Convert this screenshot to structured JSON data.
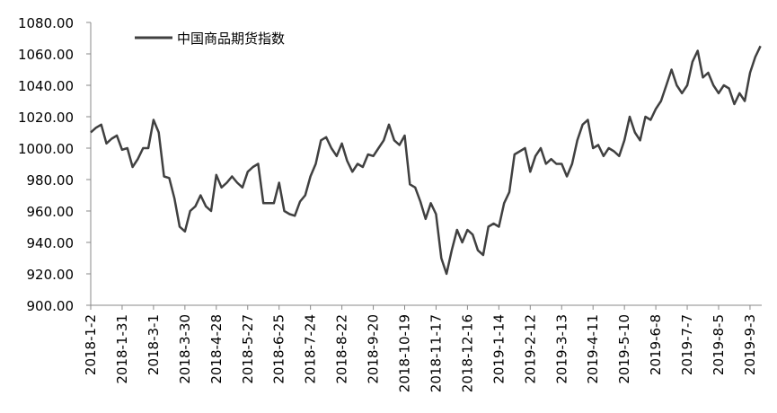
{
  "chart_data": {
    "type": "line",
    "categories": [
      "2018-1-2",
      null,
      null,
      null,
      null,
      null,
      "2018-1-31",
      null,
      null,
      null,
      null,
      null,
      "2018-3-1",
      null,
      null,
      null,
      null,
      null,
      "2018-3-30",
      null,
      null,
      null,
      null,
      null,
      "2018-4-28",
      null,
      null,
      null,
      null,
      null,
      "2018-5-27",
      null,
      null,
      null,
      null,
      null,
      "2018-6-25",
      null,
      null,
      null,
      null,
      null,
      "2018-7-24",
      null,
      null,
      null,
      null,
      null,
      "2018-8-22",
      null,
      null,
      null,
      null,
      null,
      "2018-9-20",
      null,
      null,
      null,
      null,
      null,
      "2018-10-19",
      null,
      null,
      null,
      null,
      null,
      "2018-11-17",
      null,
      null,
      null,
      null,
      null,
      "2018-12-16",
      null,
      null,
      null,
      null,
      null,
      "2019-1-14",
      null,
      null,
      null,
      null,
      null,
      "2019-2-12",
      null,
      null,
      null,
      null,
      null,
      "2019-3-13",
      null,
      null,
      null,
      null,
      null,
      "2019-4-11",
      null,
      null,
      null,
      null,
      null,
      "2019-5-10",
      null,
      null,
      null,
      null,
      null,
      "2019-6-8",
      null,
      null,
      null,
      null,
      null,
      "2019-7-7",
      null,
      null,
      null,
      null,
      null,
      "2019-8-5",
      null,
      null,
      null,
      null,
      null,
      "2019-9-3",
      null,
      null
    ],
    "series": [
      {
        "name": "中国商品期货指数",
        "color": "#404040",
        "values": [
          1010,
          1013,
          1015,
          1003,
          1006,
          1008,
          999,
          1000,
          988,
          993,
          1000,
          1000,
          1018,
          1010,
          982,
          981,
          968,
          950,
          947,
          960,
          963,
          970,
          963,
          960,
          983,
          975,
          978,
          982,
          978,
          975,
          985,
          988,
          990,
          965,
          965,
          965,
          978,
          960,
          958,
          957,
          966,
          970,
          982,
          990,
          1005,
          1007,
          1000,
          995,
          1003,
          992,
          985,
          990,
          988,
          996,
          995,
          1000,
          1005,
          1015,
          1005,
          1002,
          1008,
          977,
          975,
          966,
          955,
          965,
          958,
          930,
          920,
          935,
          948,
          940,
          948,
          945,
          935,
          932,
          950,
          952,
          950,
          965,
          972,
          996,
          998,
          1000,
          985,
          995,
          1000,
          990,
          993,
          990,
          990,
          982,
          990,
          1005,
          1015,
          1018,
          1000,
          1002,
          995,
          1000,
          998,
          995,
          1005,
          1020,
          1010,
          1005,
          1020,
          1018,
          1025,
          1030,
          1040,
          1050,
          1040,
          1035,
          1040,
          1055,
          1062,
          1045,
          1048,
          1040,
          1035,
          1040,
          1038,
          1028,
          1035,
          1030,
          1048,
          1058,
          1065
        ]
      }
    ],
    "ylim": [
      900,
      1080
    ],
    "yticks": [
      {
        "value": 900,
        "label": "900.00"
      },
      {
        "value": 920,
        "label": "920.00"
      },
      {
        "value": 940,
        "label": "940.00"
      },
      {
        "value": 960,
        "label": "960.00"
      },
      {
        "value": 980,
        "label": "980.00"
      },
      {
        "value": 1000,
        "label": "1000.00"
      },
      {
        "value": 1020,
        "label": "1020.00"
      },
      {
        "value": 1040,
        "label": "1040.00"
      },
      {
        "value": 1060,
        "label": "1060.00"
      },
      {
        "value": 1080,
        "label": "1080.00"
      }
    ],
    "grid": false,
    "legend": "top-left"
  }
}
